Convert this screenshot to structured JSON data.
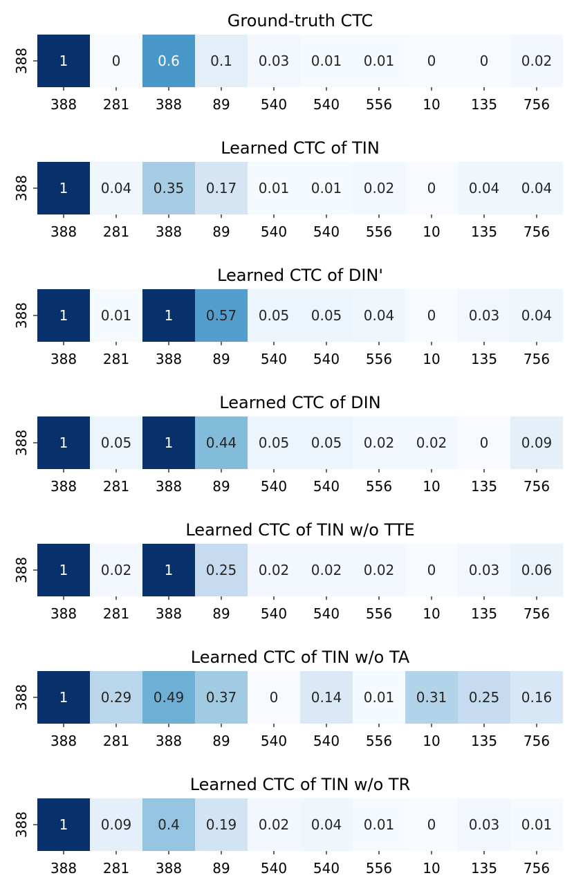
{
  "chart_data": [
    {
      "type": "heatmap",
      "title": "Ground-truth CTC",
      "y_categories": [
        "388"
      ],
      "x_categories": [
        "388",
        "281",
        "388",
        "89",
        "540",
        "540",
        "556",
        "10",
        "135",
        "756"
      ],
      "values": [
        1,
        0,
        0.6,
        0.1,
        0.03,
        0.01,
        0.01,
        0,
        0,
        0.02
      ],
      "value_range": [
        0,
        1
      ],
      "colormap": "Blues"
    },
    {
      "type": "heatmap",
      "title": "Learned CTC of TIN",
      "y_categories": [
        "388"
      ],
      "x_categories": [
        "388",
        "281",
        "388",
        "89",
        "540",
        "540",
        "556",
        "10",
        "135",
        "756"
      ],
      "values": [
        1,
        0.04,
        0.35,
        0.17,
        0.01,
        0.01,
        0.02,
        0,
        0.04,
        0.04
      ],
      "value_range": [
        0,
        1
      ],
      "colormap": "Blues"
    },
    {
      "type": "heatmap",
      "title": "Learned CTC of DIN'",
      "y_categories": [
        "388"
      ],
      "x_categories": [
        "388",
        "281",
        "388",
        "89",
        "540",
        "540",
        "556",
        "10",
        "135",
        "756"
      ],
      "values": [
        1,
        0.01,
        1,
        0.57,
        0.05,
        0.05,
        0.04,
        0,
        0.03,
        0.04
      ],
      "value_range": [
        0,
        1
      ],
      "colormap": "Blues"
    },
    {
      "type": "heatmap",
      "title": "Learned CTC of DIN",
      "y_categories": [
        "388"
      ],
      "x_categories": [
        "388",
        "281",
        "388",
        "89",
        "540",
        "540",
        "556",
        "10",
        "135",
        "756"
      ],
      "values": [
        1,
        0.05,
        1,
        0.44,
        0.05,
        0.05,
        0.02,
        0.02,
        0,
        0.09
      ],
      "value_range": [
        0,
        1
      ],
      "colormap": "Blues"
    },
    {
      "type": "heatmap",
      "title": "Learned CTC of TIN w/o TTE",
      "y_categories": [
        "388"
      ],
      "x_categories": [
        "388",
        "281",
        "388",
        "89",
        "540",
        "540",
        "556",
        "10",
        "135",
        "756"
      ],
      "values": [
        1,
        0.02,
        1,
        0.25,
        0.02,
        0.02,
        0.02,
        0,
        0.03,
        0.06
      ],
      "value_range": [
        0,
        1
      ],
      "colormap": "Blues"
    },
    {
      "type": "heatmap",
      "title": "Learned CTC of TIN w/o TA",
      "y_categories": [
        "388"
      ],
      "x_categories": [
        "388",
        "281",
        "388",
        "89",
        "540",
        "540",
        "556",
        "10",
        "135",
        "756"
      ],
      "values": [
        1,
        0.29,
        0.49,
        0.37,
        0,
        0.14,
        0.01,
        0.31,
        0.25,
        0.16
      ],
      "value_range": [
        0,
        1
      ],
      "colormap": "Blues"
    },
    {
      "type": "heatmap",
      "title": "Learned CTC of TIN w/o TR",
      "y_categories": [
        "388"
      ],
      "x_categories": [
        "388",
        "281",
        "388",
        "89",
        "540",
        "540",
        "556",
        "10",
        "135",
        "756"
      ],
      "values": [
        1,
        0.09,
        0.4,
        0.19,
        0.02,
        0.04,
        0.01,
        0,
        0.03,
        0.01
      ],
      "value_range": [
        0,
        1
      ],
      "colormap": "Blues"
    }
  ]
}
